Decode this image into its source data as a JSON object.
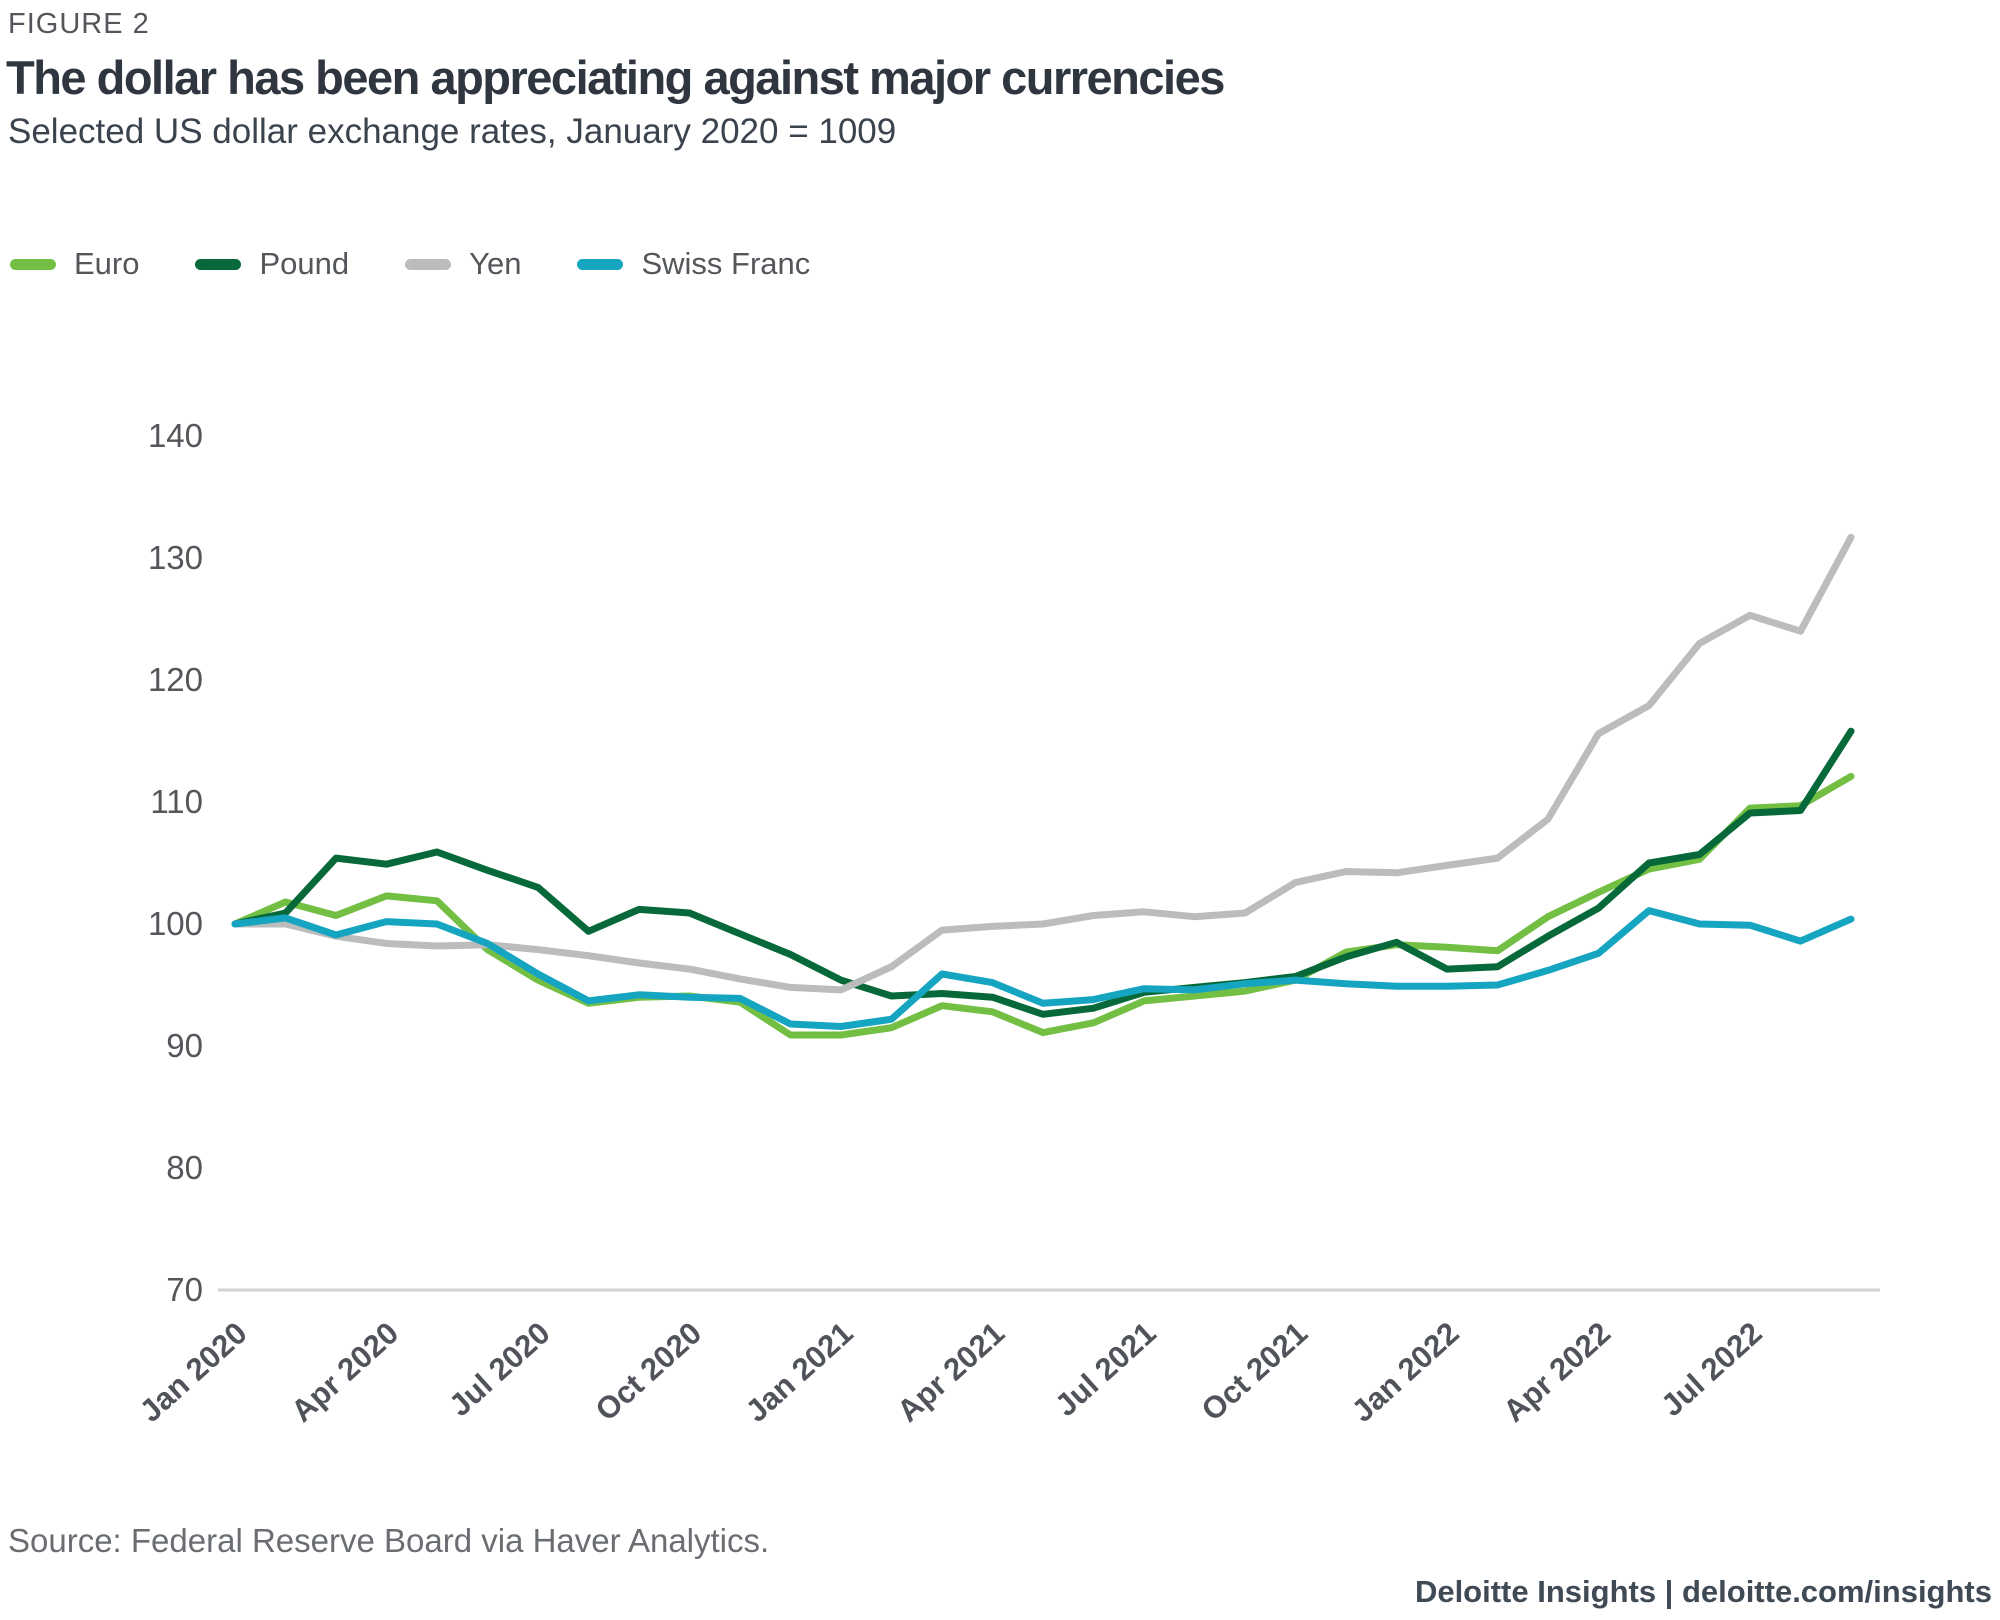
{
  "header": {
    "figure_label": "FIGURE 2",
    "title": "The dollar has been appreciating against major currencies",
    "subtitle": "Selected US dollar exchange rates, January 2020 = 1009"
  },
  "footer": {
    "source": "Source: Federal Reserve Board via Haver Analytics.",
    "branding": "Deloitte Insights | deloitte.com/insights"
  },
  "colors": {
    "euro": "#72BF44",
    "pound": "#07693A",
    "yen": "#BBBCBC",
    "swiss_franc": "#16A5C1",
    "axis_line": "#D2D3D4",
    "y_tick_text": "#53565A",
    "x_tick_text": "#50545A",
    "title_text": "#2F3640"
  },
  "chart_data": {
    "type": "line",
    "title": "The dollar has been appreciating against major currencies",
    "subtitle": "Selected US dollar exchange rates, January 2020 = 1009",
    "xlabel": "",
    "ylabel": "",
    "ylim": [
      70,
      145
    ],
    "y_ticks": [
      140,
      130,
      120,
      110,
      100,
      90,
      80,
      70
    ],
    "grid": "baseline-only",
    "legend_position": "top-left",
    "x": [
      "Jan 2020",
      "Feb 2020",
      "Mar 2020",
      "Apr 2020",
      "May 2020",
      "Jun 2020",
      "Jul 2020",
      "Aug 2020",
      "Sep 2020",
      "Oct 2020",
      "Nov 2020",
      "Dec 2020",
      "Jan 2021",
      "Feb 2021",
      "Mar 2021",
      "Apr 2021",
      "May 2021",
      "Jun 2021",
      "Jul 2021",
      "Aug 2021",
      "Sep 2021",
      "Oct 2021",
      "Nov 2021",
      "Dec 2021",
      "Jan 2022",
      "Feb 2022",
      "Mar 2022",
      "Apr 2022",
      "May 2022",
      "Jun 2022",
      "Jul 2022",
      "Aug 2022",
      "Sep 2022"
    ],
    "x_tick_labels": [
      "Jan 2020",
      "Apr 2020",
      "Jul 2020",
      "Oct 2020",
      "Jan 2021",
      "Apr 2021",
      "Jul 2021",
      "Oct 2021",
      "Jan 2022",
      "Apr 2022",
      "Jul 2022"
    ],
    "series": [
      {
        "name": "Euro",
        "color_key": "euro",
        "values": [
          100,
          101.8,
          100.7,
          102.3,
          101.9,
          97.9,
          95.4,
          93.5,
          94.0,
          94.1,
          93.6,
          90.9,
          90.9,
          91.5,
          93.3,
          92.8,
          91.1,
          91.9,
          93.7,
          94.1,
          94.5,
          95.4,
          97.7,
          98.3,
          98.1,
          97.8,
          100.6,
          102.6,
          104.5,
          105.3,
          109.5,
          109.7,
          112.1
        ]
      },
      {
        "name": "Pound",
        "color_key": "pound",
        "values": [
          100,
          100.9,
          105.4,
          104.9,
          105.9,
          104.4,
          103.0,
          99.4,
          101.2,
          100.9,
          99.2,
          97.5,
          95.4,
          94.1,
          94.3,
          94.0,
          92.6,
          93.1,
          94.4,
          94.8,
          95.2,
          95.7,
          97.3,
          98.5,
          96.3,
          96.5,
          99.0,
          101.3,
          105.0,
          105.7,
          109.1,
          109.3,
          115.8
        ]
      },
      {
        "name": "Yen",
        "color_key": "yen",
        "values": [
          100,
          100.0,
          99.0,
          98.4,
          98.2,
          98.3,
          97.9,
          97.4,
          96.8,
          96.3,
          95.5,
          94.8,
          94.6,
          96.5,
          99.5,
          99.8,
          100.0,
          100.7,
          101.0,
          100.6,
          100.9,
          103.4,
          104.3,
          104.2,
          104.8,
          105.4,
          108.6,
          115.6,
          117.9,
          123.0,
          125.3,
          124.0,
          131.7
        ]
      },
      {
        "name": "Swiss Franc",
        "color_key": "swiss_franc",
        "values": [
          100,
          100.5,
          99.1,
          100.2,
          100.0,
          98.4,
          95.9,
          93.7,
          94.2,
          94.0,
          93.9,
          91.8,
          91.6,
          92.2,
          95.9,
          95.2,
          93.5,
          93.8,
          94.7,
          94.6,
          95.1,
          95.4,
          95.1,
          94.9,
          94.9,
          95.0,
          96.2,
          97.6,
          101.1,
          100.0,
          99.9,
          98.6,
          100.4
        ]
      }
    ]
  }
}
